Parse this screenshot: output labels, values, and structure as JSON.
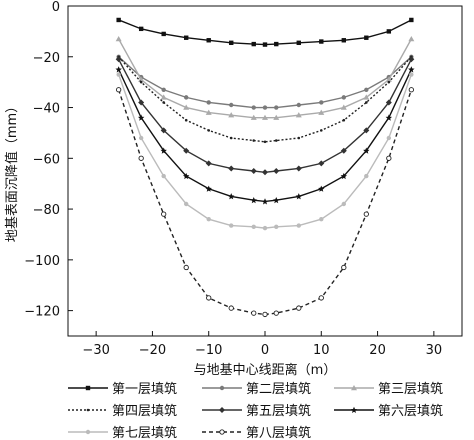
{
  "chart_data": {
    "type": "line",
    "title": "",
    "xlabel": "与地基中心线距离（m）",
    "ylabel": "地基表面沉降值（mm）",
    "xlim": [
      -35,
      35
    ],
    "ylim": [
      -130,
      0
    ],
    "xticks": [
      -30,
      -20,
      -10,
      0,
      10,
      20,
      30
    ],
    "yticks": [
      0,
      -20,
      -40,
      -60,
      -80,
      -100,
      -120
    ],
    "x": [
      -26,
      -22,
      -18,
      -14,
      -10,
      -6,
      -2,
      0,
      2,
      6,
      10,
      14,
      18,
      22,
      26
    ],
    "legend_position": "bottom",
    "series": [
      {
        "name": "第一层填筑",
        "color": "#111111",
        "dash": "",
        "marker": "filled-square",
        "values": [
          -5.5,
          -9,
          -11,
          -12.5,
          -13.5,
          -14.5,
          -15,
          -15.2,
          -15,
          -14.5,
          -14,
          -13.5,
          -12.5,
          -10,
          -5.5
        ]
      },
      {
        "name": "第二层填筑",
        "color": "#7a7a7a",
        "dash": "",
        "marker": "filled-circle",
        "values": [
          -20,
          -28,
          -33,
          -36,
          -38,
          -39,
          -40,
          -40,
          -40,
          -39,
          -38,
          -36,
          -33,
          -28,
          -20
        ]
      },
      {
        "name": "第三层填筑",
        "color": "#aaaaaa",
        "dash": "",
        "marker": "filled-triangle",
        "values": [
          -13,
          -29,
          -36,
          -40,
          -42,
          -43,
          -44,
          -44,
          -44,
          -43,
          -42,
          -40,
          -36,
          -29,
          -13
        ]
      },
      {
        "name": "第四层填筑",
        "color": "#222222",
        "dash": "2,2",
        "marker": "small-dot",
        "values": [
          -20,
          -30,
          -38,
          -45,
          -49,
          -52,
          -53,
          -53.5,
          -53,
          -52,
          -49,
          -45,
          -38,
          -30,
          -20
        ]
      },
      {
        "name": "第五层填筑",
        "color": "#333333",
        "dash": "",
        "marker": "filled-diamond",
        "values": [
          -21,
          -38,
          -49,
          -57,
          -62,
          -64,
          -65,
          -65.5,
          -65,
          -64,
          -62,
          -57,
          -49,
          -38,
          -21
        ]
      },
      {
        "name": "第六层填筑",
        "color": "#111111",
        "dash": "",
        "marker": "filled-star",
        "values": [
          -25,
          -44,
          -57,
          -67,
          -72,
          -75,
          -76.5,
          -77,
          -76.5,
          -75,
          -72,
          -67,
          -57,
          -44,
          -25
        ]
      },
      {
        "name": "第七层填筑",
        "color": "#bbbbbb",
        "dash": "",
        "marker": "filled-circle",
        "values": [
          -27,
          -52,
          -67,
          -78,
          -84,
          -86.5,
          -87,
          -87.5,
          -87,
          -86.5,
          -84,
          -78,
          -67,
          -52,
          -27
        ]
      },
      {
        "name": "第八层填筑",
        "color": "#222222",
        "dash": "4,3",
        "marker": "open-circle",
        "values": [
          -33,
          -60,
          -82,
          -103,
          -115,
          -119,
          -121,
          -121.5,
          -121,
          -119,
          -115,
          -103,
          -82,
          -60,
          -33
        ]
      }
    ]
  }
}
